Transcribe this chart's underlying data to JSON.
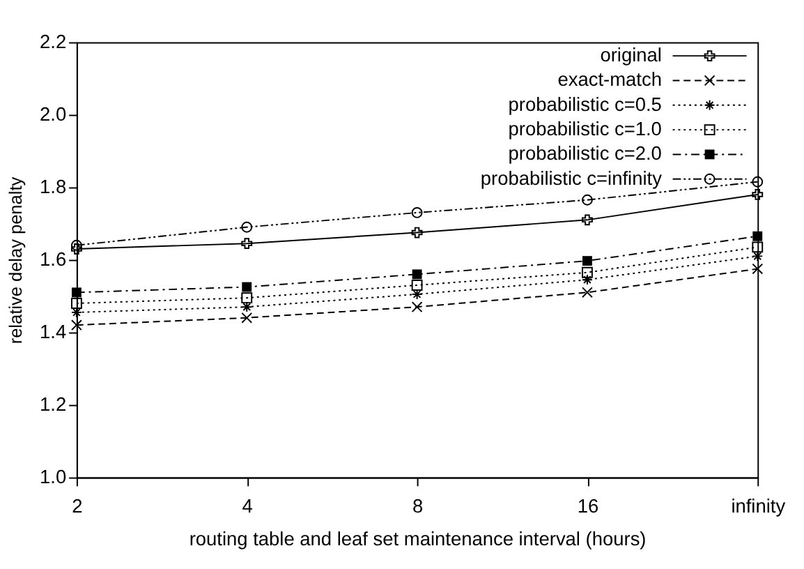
{
  "chart_data": {
    "type": "line",
    "xlabel": "routing table and leaf set maintenance interval (hours)",
    "ylabel": "relative delay penalty",
    "categories": [
      "2",
      "4",
      "8",
      "16",
      "infinity"
    ],
    "ylim": [
      1,
      2.2
    ],
    "yticks": [
      {
        "value": 1,
        "label": "1.0"
      },
      1.2,
      1.4,
      1.6,
      1.8,
      {
        "value": 2,
        "label": "2.0"
      },
      2.2
    ],
    "grid": false,
    "legend": "top right",
    "series": [
      {
        "name": "original",
        "color": "#000000",
        "marker": "plus",
        "line_style": "solid",
        "values": [
          1.63,
          1.645,
          1.675,
          1.71,
          1.78
        ]
      },
      {
        "name": "exact-match",
        "color": "#000000",
        "marker": "x",
        "line_style": "dashed",
        "values": [
          1.42,
          1.44,
          1.47,
          1.51,
          1.575
        ]
      },
      {
        "name": "probabilistic c=0.5",
        "color": "#000000",
        "marker": "cross",
        "line_style": "dotted",
        "values": [
          1.455,
          1.47,
          1.505,
          1.545,
          1.61
        ]
      },
      {
        "name": "probabilistic c=1.0",
        "color": "#000000",
        "marker": "square",
        "line_style": "dotted",
        "values": [
          1.48,
          1.495,
          1.53,
          1.565,
          1.635
        ]
      },
      {
        "name": "probabilistic c=2.0",
        "color": "#000000",
        "marker": "square",
        "line_style": "dashdot",
        "values": [
          1.51,
          1.525,
          1.56,
          1.597,
          1.665
        ]
      },
      {
        "name": "probabilistic c=infinity",
        "color": "#000000",
        "marker": "circle",
        "line_style": "dashdotdot",
        "values": [
          1.64,
          1.69,
          1.73,
          1.765,
          1.815
        ]
      }
    ]
  }
}
